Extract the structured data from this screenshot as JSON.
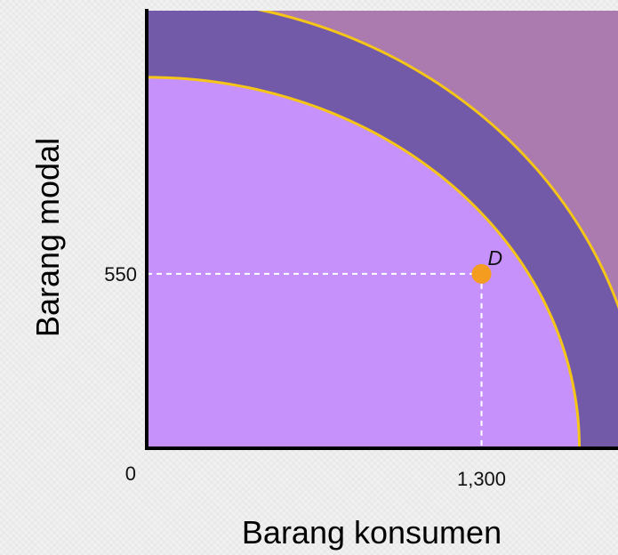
{
  "chart_data": {
    "type": "area",
    "xlabel": "Barang konsumen",
    "ylabel": "Barang modal",
    "origin_label": "0",
    "x_ticks": [
      {
        "value": 1300,
        "label": "1,300"
      }
    ],
    "y_ticks": [
      {
        "value": 550,
        "label": "550"
      }
    ],
    "xlim": [
      0,
      1830
    ],
    "ylim": [
      0,
      1380
    ],
    "curves": [
      {
        "x_intercept": 1680,
        "y_intercept": 1170
      },
      {
        "x_intercept": 1930,
        "y_intercept": 1420
      }
    ],
    "points": [
      {
        "label": "D",
        "x": 1300,
        "y": 550
      }
    ],
    "colors": {
      "outer_region": "#ab7aae",
      "band": "#735aa8",
      "inner_region": "#c791fb",
      "curve_line": "#f5c518",
      "point": "#f39c20",
      "guide_line": "#ffffff",
      "axis": "#000000"
    }
  }
}
